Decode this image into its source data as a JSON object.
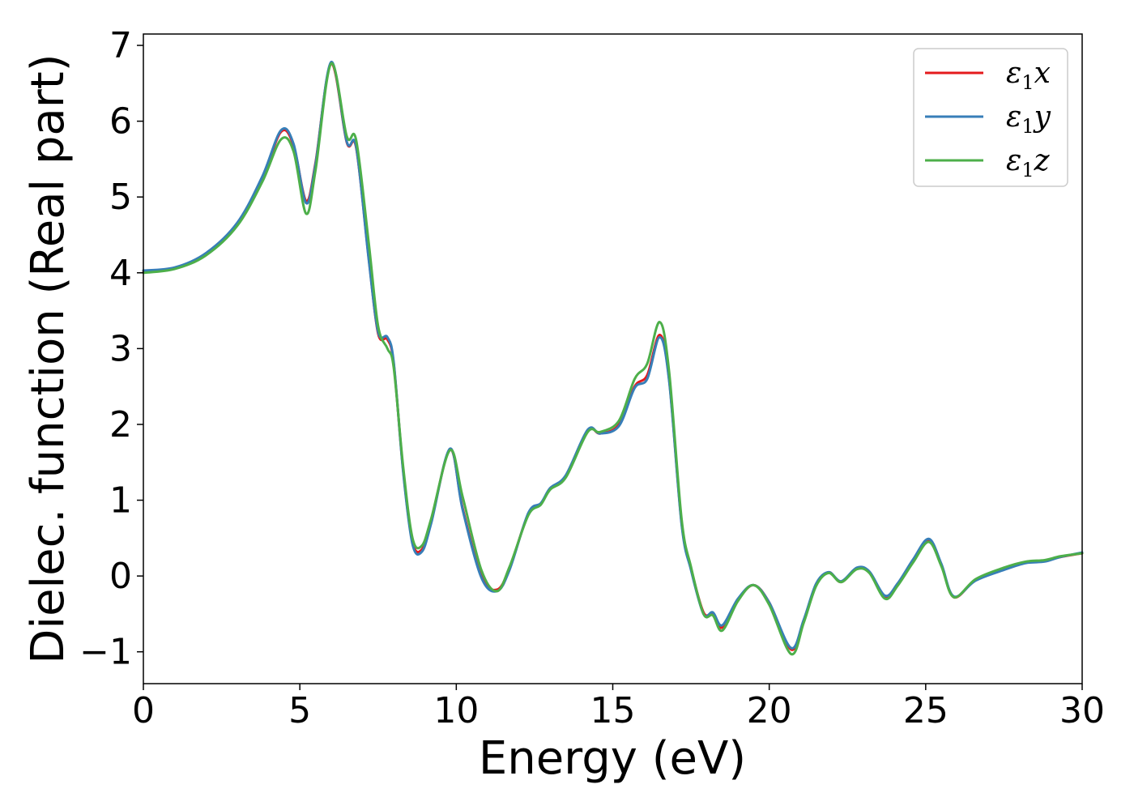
{
  "chart_data": {
    "type": "line",
    "title": "",
    "xlabel": "Energy (eV)",
    "ylabel": "Dielec. function (Real part)",
    "xlim": [
      0,
      30
    ],
    "ylim": [
      -1.42,
      7.15
    ],
    "xticks": [
      0,
      5,
      10,
      15,
      20,
      25,
      30
    ],
    "yticks": [
      -1,
      0,
      1,
      2,
      3,
      4,
      5,
      6,
      7
    ],
    "xtick_labels": [
      "0",
      "5",
      "10",
      "15",
      "20",
      "25",
      "30"
    ],
    "ytick_labels": [
      "−1",
      "0",
      "1",
      "2",
      "3",
      "4",
      "5",
      "6",
      "7"
    ],
    "grid": false,
    "legend_position": "top-right",
    "series": [
      {
        "name": "ε1x",
        "legend": {
          "base": "ε",
          "sub": "1",
          "suffix": "x"
        },
        "color": "#e41a1c",
        "points": [
          [
            0,
            4.02
          ],
          [
            1,
            4.06
          ],
          [
            2,
            4.25
          ],
          [
            3,
            4.65
          ],
          [
            3.8,
            5.25
          ],
          [
            4.4,
            5.86
          ],
          [
            4.8,
            5.68
          ],
          [
            5.2,
            4.95
          ],
          [
            5.5,
            5.45
          ],
          [
            6.0,
            6.76
          ],
          [
            6.5,
            5.72
          ],
          [
            6.8,
            5.65
          ],
          [
            7.2,
            4.2
          ],
          [
            7.5,
            3.2
          ],
          [
            7.8,
            3.12
          ],
          [
            8.0,
            2.8
          ],
          [
            8.3,
            1.4
          ],
          [
            8.6,
            0.45
          ],
          [
            8.9,
            0.35
          ],
          [
            9.2,
            0.72
          ],
          [
            9.8,
            1.67
          ],
          [
            10.2,
            0.9
          ],
          [
            10.8,
            0.0
          ],
          [
            11.3,
            -0.18
          ],
          [
            11.7,
            0.1
          ],
          [
            12.3,
            0.82
          ],
          [
            12.7,
            0.95
          ],
          [
            13.0,
            1.15
          ],
          [
            13.5,
            1.32
          ],
          [
            14.2,
            1.92
          ],
          [
            14.6,
            1.88
          ],
          [
            15.2,
            2.0
          ],
          [
            15.7,
            2.5
          ],
          [
            16.1,
            2.65
          ],
          [
            16.5,
            3.18
          ],
          [
            16.8,
            2.6
          ],
          [
            17.2,
            0.7
          ],
          [
            17.5,
            0.1
          ],
          [
            17.9,
            -0.48
          ],
          [
            18.2,
            -0.5
          ],
          [
            18.5,
            -0.68
          ],
          [
            19.0,
            -0.32
          ],
          [
            19.5,
            -0.12
          ],
          [
            20.0,
            -0.35
          ],
          [
            20.7,
            -0.97
          ],
          [
            21.1,
            -0.6
          ],
          [
            21.5,
            -0.12
          ],
          [
            21.9,
            0.05
          ],
          [
            22.3,
            -0.08
          ],
          [
            22.8,
            0.1
          ],
          [
            23.2,
            0.05
          ],
          [
            23.7,
            -0.28
          ],
          [
            24.1,
            -0.12
          ],
          [
            24.6,
            0.2
          ],
          [
            25.1,
            0.48
          ],
          [
            25.5,
            0.15
          ],
          [
            25.9,
            -0.28
          ],
          [
            26.6,
            -0.05
          ],
          [
            27.5,
            0.1
          ],
          [
            28.2,
            0.18
          ],
          [
            28.8,
            0.2
          ],
          [
            29.3,
            0.25
          ],
          [
            30,
            0.3
          ]
        ]
      },
      {
        "name": "ε1y",
        "legend": {
          "base": "ε",
          "sub": "1",
          "suffix": "y"
        },
        "color": "#377eb8",
        "points": [
          [
            0,
            4.03
          ],
          [
            1,
            4.07
          ],
          [
            2,
            4.26
          ],
          [
            3,
            4.66
          ],
          [
            3.8,
            5.27
          ],
          [
            4.4,
            5.88
          ],
          [
            4.8,
            5.7
          ],
          [
            5.2,
            4.92
          ],
          [
            5.5,
            5.43
          ],
          [
            6.0,
            6.78
          ],
          [
            6.5,
            5.73
          ],
          [
            6.8,
            5.66
          ],
          [
            7.2,
            4.18
          ],
          [
            7.5,
            3.22
          ],
          [
            7.8,
            3.15
          ],
          [
            8.0,
            2.82
          ],
          [
            8.3,
            1.38
          ],
          [
            8.6,
            0.42
          ],
          [
            8.9,
            0.32
          ],
          [
            9.2,
            0.7
          ],
          [
            9.8,
            1.68
          ],
          [
            10.2,
            0.88
          ],
          [
            10.8,
            -0.02
          ],
          [
            11.3,
            -0.2
          ],
          [
            11.7,
            0.08
          ],
          [
            12.3,
            0.83
          ],
          [
            12.7,
            0.96
          ],
          [
            13.0,
            1.16
          ],
          [
            13.5,
            1.33
          ],
          [
            14.2,
            1.93
          ],
          [
            14.6,
            1.88
          ],
          [
            15.2,
            1.98
          ],
          [
            15.7,
            2.48
          ],
          [
            16.1,
            2.6
          ],
          [
            16.5,
            3.15
          ],
          [
            16.8,
            2.58
          ],
          [
            17.2,
            0.68
          ],
          [
            17.5,
            0.08
          ],
          [
            17.9,
            -0.5
          ],
          [
            18.2,
            -0.48
          ],
          [
            18.5,
            -0.65
          ],
          [
            19.0,
            -0.3
          ],
          [
            19.5,
            -0.12
          ],
          [
            20.0,
            -0.35
          ],
          [
            20.7,
            -0.95
          ],
          [
            21.1,
            -0.58
          ],
          [
            21.5,
            -0.1
          ],
          [
            21.9,
            0.05
          ],
          [
            22.3,
            -0.07
          ],
          [
            22.8,
            0.11
          ],
          [
            23.2,
            0.06
          ],
          [
            23.7,
            -0.26
          ],
          [
            24.1,
            -0.1
          ],
          [
            24.6,
            0.22
          ],
          [
            25.1,
            0.49
          ],
          [
            25.5,
            0.16
          ],
          [
            25.9,
            -0.27
          ],
          [
            26.6,
            -0.06
          ],
          [
            27.5,
            0.08
          ],
          [
            28.2,
            0.17
          ],
          [
            28.8,
            0.19
          ],
          [
            29.3,
            0.25
          ],
          [
            30,
            0.31
          ]
        ]
      },
      {
        "name": "ε1z",
        "legend": {
          "base": "ε",
          "sub": "1",
          "suffix": "z"
        },
        "color": "#4daf4a",
        "points": [
          [
            0,
            4.0
          ],
          [
            1,
            4.05
          ],
          [
            2,
            4.23
          ],
          [
            3,
            4.62
          ],
          [
            3.8,
            5.2
          ],
          [
            4.4,
            5.76
          ],
          [
            4.8,
            5.6
          ],
          [
            5.2,
            4.78
          ],
          [
            5.5,
            5.35
          ],
          [
            6.0,
            6.76
          ],
          [
            6.5,
            5.8
          ],
          [
            6.8,
            5.75
          ],
          [
            7.2,
            4.4
          ],
          [
            7.5,
            3.3
          ],
          [
            7.8,
            3.0
          ],
          [
            8.0,
            2.75
          ],
          [
            8.3,
            1.45
          ],
          [
            8.6,
            0.5
          ],
          [
            8.9,
            0.4
          ],
          [
            9.2,
            0.76
          ],
          [
            9.8,
            1.66
          ],
          [
            10.2,
            1.05
          ],
          [
            10.8,
            0.08
          ],
          [
            11.3,
            -0.2
          ],
          [
            11.7,
            0.12
          ],
          [
            12.3,
            0.8
          ],
          [
            12.7,
            0.94
          ],
          [
            13.0,
            1.14
          ],
          [
            13.5,
            1.3
          ],
          [
            14.2,
            1.9
          ],
          [
            14.6,
            1.9
          ],
          [
            15.2,
            2.05
          ],
          [
            15.7,
            2.6
          ],
          [
            16.1,
            2.8
          ],
          [
            16.5,
            3.35
          ],
          [
            16.8,
            2.7
          ],
          [
            17.2,
            0.75
          ],
          [
            17.5,
            0.12
          ],
          [
            17.9,
            -0.5
          ],
          [
            18.2,
            -0.52
          ],
          [
            18.5,
            -0.72
          ],
          [
            19.0,
            -0.33
          ],
          [
            19.5,
            -0.12
          ],
          [
            20.0,
            -0.38
          ],
          [
            20.7,
            -1.03
          ],
          [
            21.1,
            -0.62
          ],
          [
            21.5,
            -0.13
          ],
          [
            21.9,
            0.04
          ],
          [
            22.3,
            -0.08
          ],
          [
            22.8,
            0.09
          ],
          [
            23.2,
            0.04
          ],
          [
            23.7,
            -0.3
          ],
          [
            24.1,
            -0.13
          ],
          [
            24.6,
            0.18
          ],
          [
            25.1,
            0.45
          ],
          [
            25.5,
            0.13
          ],
          [
            25.9,
            -0.28
          ],
          [
            26.6,
            -0.04
          ],
          [
            27.5,
            0.11
          ],
          [
            28.2,
            0.19
          ],
          [
            28.8,
            0.21
          ],
          [
            29.3,
            0.26
          ],
          [
            30,
            0.3
          ]
        ]
      }
    ]
  }
}
